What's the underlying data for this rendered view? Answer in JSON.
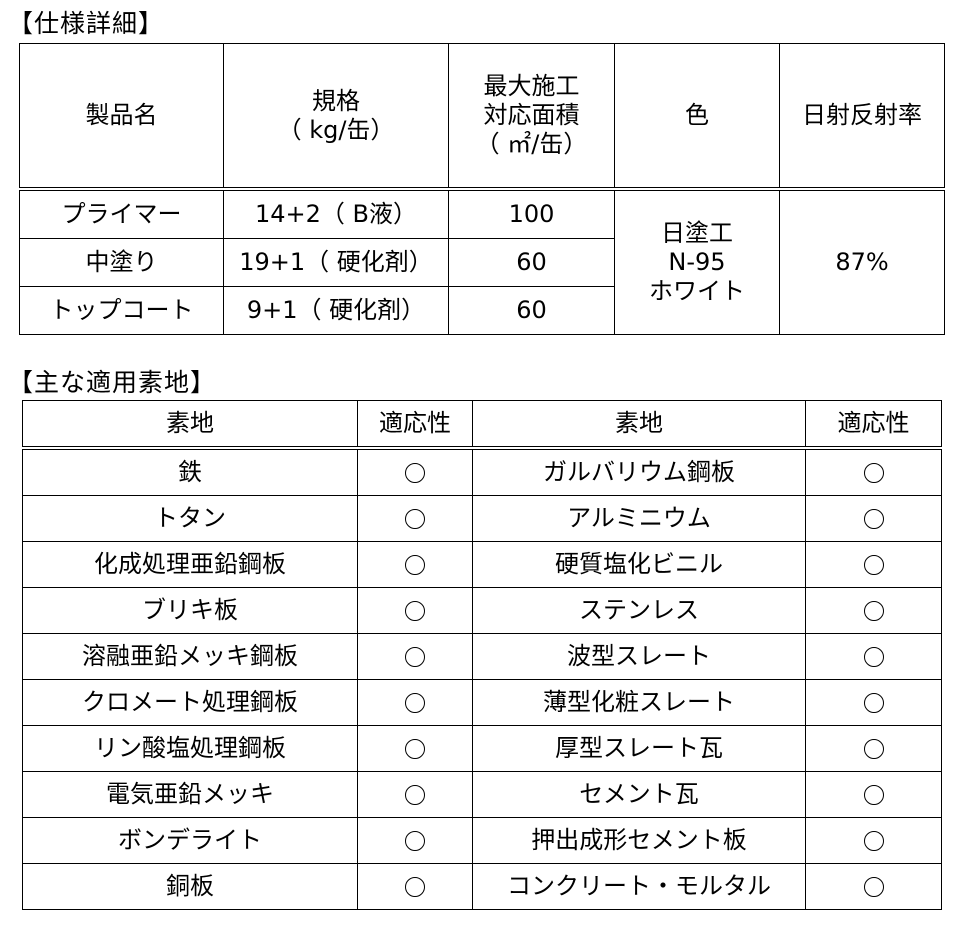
{
  "spec": {
    "title": "【仕様詳細】",
    "headers": [
      "製品名",
      "規格\n（ kg/缶）",
      "最大施工\n対応面積\n（ ㎡/缶）",
      "色",
      "日射反射率"
    ],
    "rows": [
      {
        "product": "プライマー",
        "spec": "14+2（ B液）",
        "area": "100"
      },
      {
        "product": "中塗り",
        "spec": "19+1（ 硬化剤）",
        "area": "60"
      },
      {
        "product": "トップコート",
        "spec": "9+1（ 硬化剤）",
        "area": "60"
      }
    ],
    "color": "日塗工\nN-95\nホワイト",
    "reflectance": "87%"
  },
  "substrates": {
    "title": "【主な適用素地】",
    "headers": [
      "素地",
      "適応性",
      "素地",
      "適応性"
    ],
    "compat_mark": "circle-icon",
    "rows": [
      [
        "鉄",
        "ガルバリウム鋼板"
      ],
      [
        "トタン",
        "アルミニウム"
      ],
      [
        "化成処理亜鉛鋼板",
        "硬質塩化ビニル"
      ],
      [
        "ブリキ板",
        "ステンレス"
      ],
      [
        "溶融亜鉛メッキ鋼板",
        "波型スレート"
      ],
      [
        "クロメート処理鋼板",
        "薄型化粧スレート"
      ],
      [
        "リン酸塩処理鋼板",
        "厚型スレート瓦"
      ],
      [
        "電気亜鉛メッキ",
        "セメント瓦"
      ],
      [
        "ボンデライト",
        "押出成形セメント板"
      ],
      [
        "銅板",
        "コンクリート・モルタル"
      ]
    ]
  }
}
